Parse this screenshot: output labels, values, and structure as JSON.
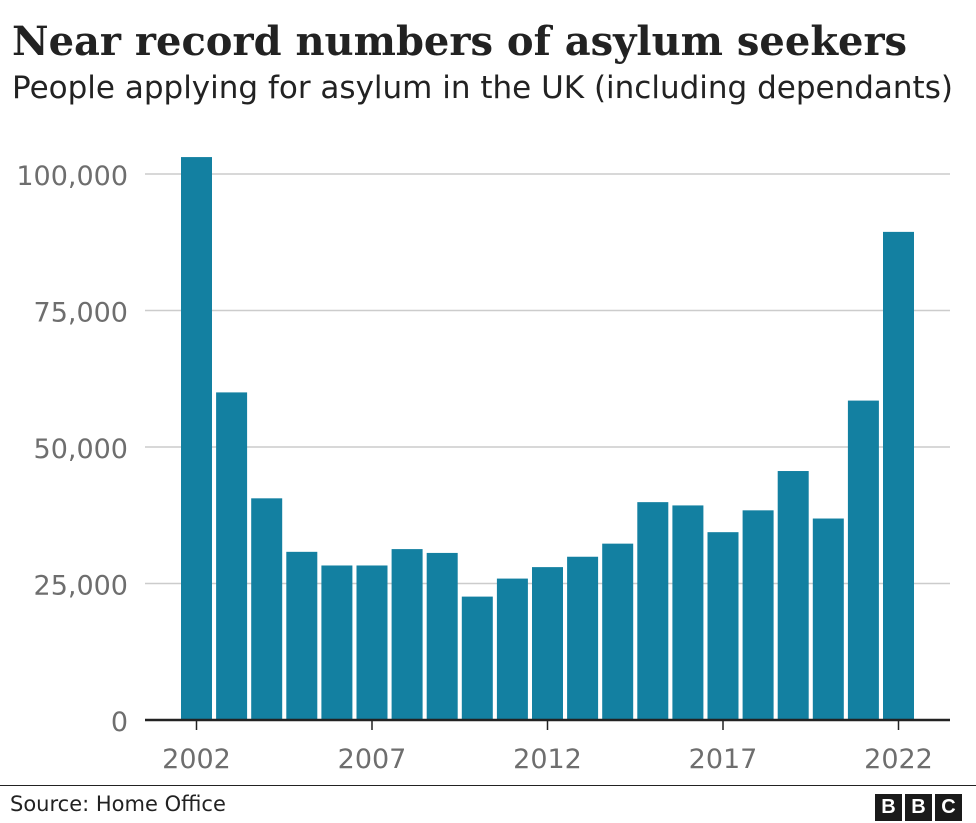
{
  "header": {
    "title": "Near record numbers of asylum seekers",
    "subtitle": "People applying for asylum in the UK (including dependants)"
  },
  "footer": {
    "source": "Source: Home Office",
    "logo_letters": [
      "B",
      "B",
      "C"
    ]
  },
  "colors": {
    "bar": "#1380a1",
    "grid": "#cccccc",
    "axis": "#222222",
    "tick_text": "#6e6e6e"
  },
  "chart_data": {
    "type": "bar",
    "title": "Near record numbers of asylum seekers",
    "subtitle": "People applying for asylum in the UK (including dependants)",
    "x": [
      2002,
      2003,
      2004,
      2005,
      2006,
      2007,
      2008,
      2009,
      2010,
      2011,
      2012,
      2013,
      2014,
      2015,
      2016,
      2017,
      2018,
      2019,
      2020,
      2021,
      2022
    ],
    "values": [
      103100,
      60000,
      40600,
      30800,
      28300,
      28300,
      31300,
      30600,
      22600,
      25900,
      28000,
      29900,
      32300,
      39900,
      39300,
      34400,
      38400,
      45600,
      36900,
      58500,
      89400
    ],
    "x_tick_labels": [
      "2002",
      "2007",
      "2012",
      "2017",
      "2022"
    ],
    "y_ticks": [
      0,
      25000,
      50000,
      75000,
      100000
    ],
    "y_tick_labels": [
      "0",
      "25,000",
      "50,000",
      "75,000",
      "100,000"
    ],
    "ylim": [
      0,
      105000
    ],
    "grid": true,
    "xlabel": "",
    "ylabel": ""
  }
}
